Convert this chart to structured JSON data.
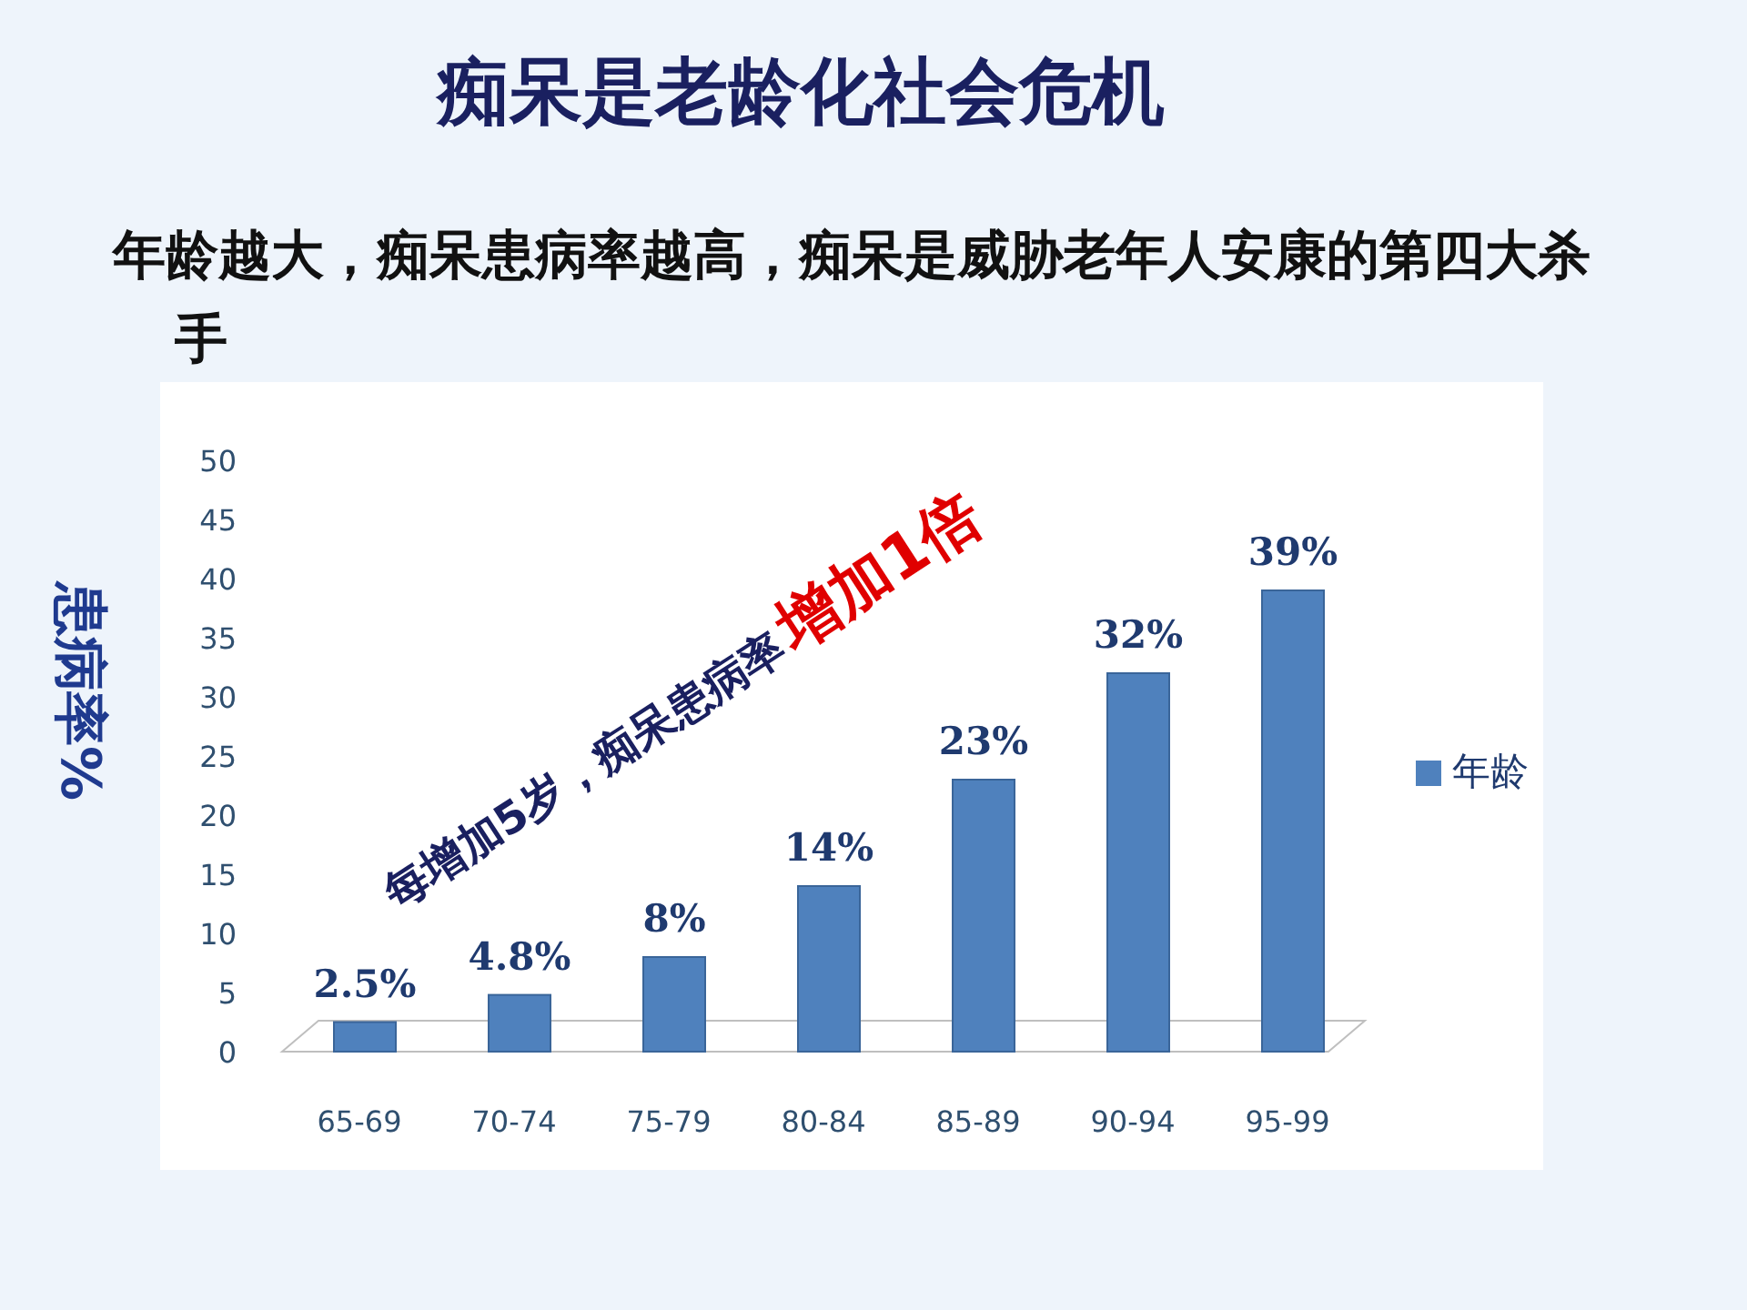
{
  "chart_data": {
    "type": "bar",
    "title": "痴呆是老龄化社会危机",
    "subtitle": "年龄越大，痴呆患病率越高，痴呆是威胁老年人安康的第四大杀手",
    "ylabel": "患病率%",
    "categories": [
      "65-69",
      "70-74",
      "75-79",
      "80-84",
      "85-89",
      "90-94",
      "95-99"
    ],
    "series": [
      {
        "name": "年龄",
        "color": "#4f81bd",
        "values": [
          2.5,
          4.8,
          8,
          14,
          23,
          32,
          39
        ],
        "value_labels": [
          "2.5%",
          "4.8%",
          "8%",
          "14%",
          "23%",
          "32%",
          "39%"
        ]
      }
    ],
    "ylim": [
      0,
      50
    ],
    "yticks": [
      0,
      5,
      10,
      15,
      20,
      25,
      30,
      35,
      40,
      45,
      50
    ],
    "legend": "right",
    "annotations": [
      "每增加5岁，痴呆患病率",
      "增加1倍"
    ]
  }
}
